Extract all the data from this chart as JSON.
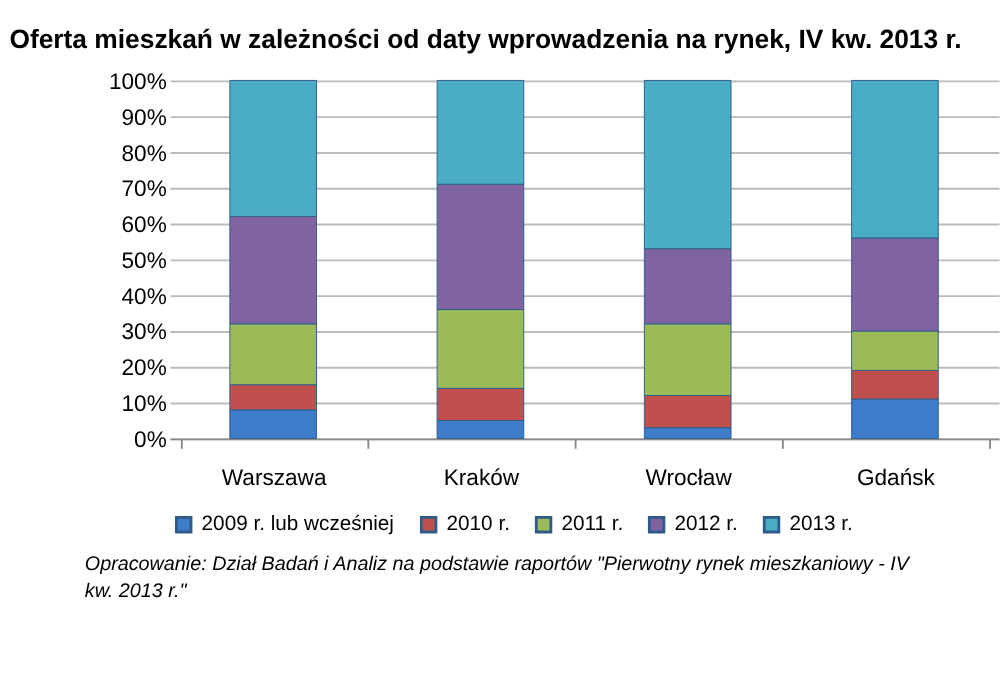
{
  "chart_data": {
    "type": "bar",
    "stacked": true,
    "title": "Oferta mieszkań w zależności od daty wprowadzenia na rynek, IV kw. 2013 r.",
    "categories": [
      "Warszawa",
      "Kraków",
      "Wrocław",
      "Gdańsk"
    ],
    "series": [
      {
        "name": "2009 r. lub wcześniej",
        "color": "#3d7cc9",
        "values": [
          8,
          5,
          3,
          11
        ]
      },
      {
        "name": "2010 r.",
        "color": "#c0504d",
        "values": [
          7,
          9,
          9,
          8
        ]
      },
      {
        "name": "2011 r.",
        "color": "#9bbb59",
        "values": [
          17,
          22,
          20,
          11
        ]
      },
      {
        "name": "2012 r.",
        "color": "#8064a2",
        "values": [
          30,
          35,
          21,
          26
        ]
      },
      {
        "name": "2013 r.",
        "color": "#4bacc6",
        "values": [
          38,
          29,
          47,
          44
        ]
      }
    ],
    "ylim": [
      0,
      100
    ],
    "yticks": [
      {
        "value": 0,
        "label": "0%"
      },
      {
        "value": 10,
        "label": "10%"
      },
      {
        "value": 20,
        "label": "20%"
      },
      {
        "value": 30,
        "label": "30%"
      },
      {
        "value": 40,
        "label": "40%"
      },
      {
        "value": 50,
        "label": "50%"
      },
      {
        "value": 60,
        "label": "60%"
      },
      {
        "value": 70,
        "label": "70%"
      },
      {
        "value": 80,
        "label": "80%"
      },
      {
        "value": 90,
        "label": "90%"
      },
      {
        "value": 100,
        "label": "100%"
      }
    ],
    "grid": "y",
    "legend": "bottom",
    "annotations": [
      "Opracowanie: Dział Badań i Analiz na podstawie raportów \"Pierwotny rynek mieszkaniowy - IV kw. 2013 r.\""
    ]
  }
}
